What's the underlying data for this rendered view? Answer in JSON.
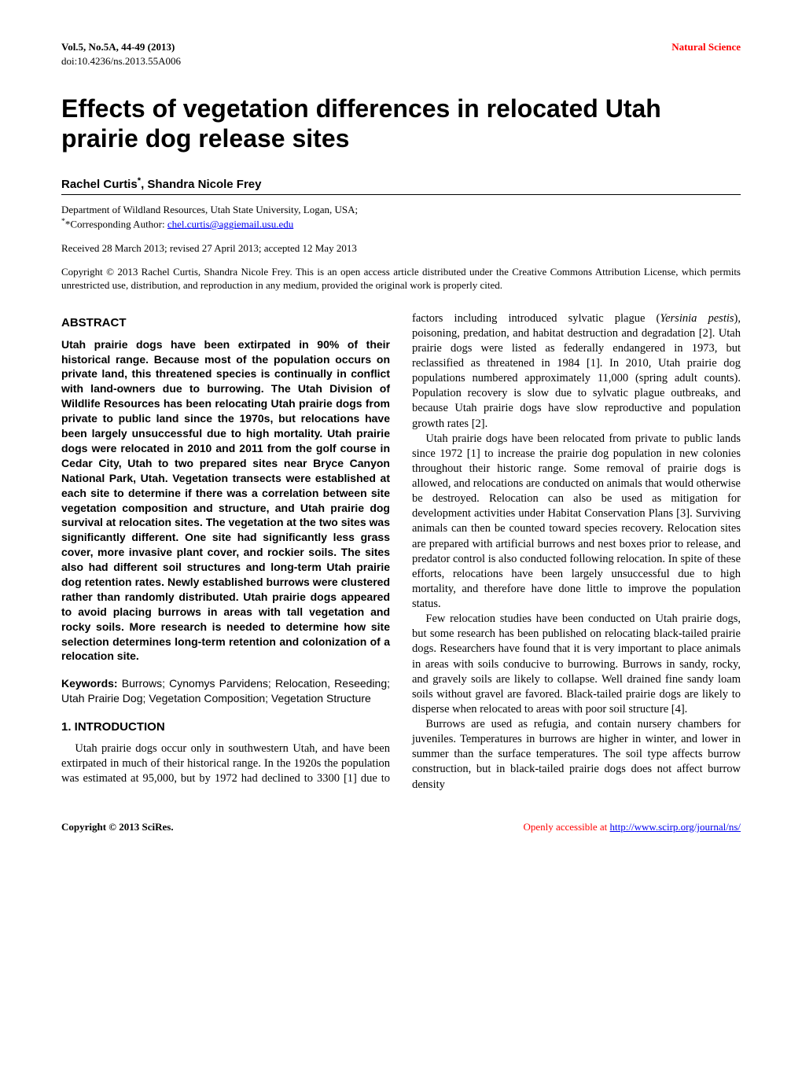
{
  "header": {
    "issue": "Vol.5, No.5A, 44-49 (2013)",
    "journal": "Natural Science",
    "doi": "doi:10.4236/ns.2013.55A006"
  },
  "title": "Effects of vegetation differences in relocated Utah prairie dog release sites",
  "authors_html": "Rachel Curtis<sup>*</sup>, Shandra Nicole Frey",
  "affiliation": {
    "dept": "Department of Wildland Resources, Utah State University, Logan, USA;",
    "corresponding_prefix": "*Corresponding Author: ",
    "email": "chel.curtis@aggiemail.usu.edu"
  },
  "received": "Received 28 March 2013; revised 27 April 2013; accepted 12 May 2013",
  "copyright": "Copyright © 2013 Rachel Curtis, Shandra Nicole Frey. This is an open access article distributed under the Creative Commons Attribution License, which permits unrestricted use, distribution, and reproduction in any medium, provided the original work is properly cited.",
  "abstract": {
    "heading": "ABSTRACT",
    "body": "Utah prairie dogs have been extirpated in 90% of their historical range. Because most of the population occurs on private land, this threatened species is continually in conflict with land-owners due to burrowing. The Utah Division of Wildlife Resources has been relocating Utah prairie dogs from private to public land since the 1970s, but relocations have been largely unsuccessful due to high mortality. Utah prairie dogs were relocated in 2010 and 2011 from the golf course in Cedar City, Utah to two prepared sites near Bryce Canyon National Park, Utah. Vegetation transects were established at each site to determine if there was a correlation between site vegetation composition and structure, and Utah prairie dog survival at relocation sites. The vegetation at the two sites was significantly different. One site had significantly less grass cover, more invasive plant cover, and rockier soils. The sites also had different soil structures and long-term Utah prairie dog retention rates. Newly established burrows were clustered rather than randomly distributed. Utah prairie dogs appeared to avoid placing burrows in areas with tall vegetation and rocky soils. More research is needed to determine how site selection determines long-term retention and colonization of a relocation site."
  },
  "keywords": {
    "label": "Keywords:",
    "text": " Burrows; Cynomys Parvidens; Relocation, Reseeding; Utah Prairie Dog; Vegetation Composition; Vegetation Structure"
  },
  "intro": {
    "heading": "1. INTRODUCTION",
    "p1": "Utah prairie dogs occur only in southwestern Utah, and have been extirpated in much of their historical range. In the 1920s the population was estimated at 95,000, but by 1972 had declined to 3300 [1] due to factors including introduced sylvatic plague (Yersinia pestis), poisoning, predation, and habitat destruction and degradation [2]. Utah prairie dogs were listed as federally endangered in 1973, but reclassified as threatened in 1984 [1]. In 2010, Utah prairie dog populations numbered approximately 11,000 (spring adult counts). Population recovery is slow due to sylvatic plague outbreaks, and because Utah prairie dogs have slow reproductive and population growth rates [2].",
    "p2": "Utah prairie dogs have been relocated from private to public lands since 1972 [1] to increase the prairie dog population in new colonies throughout their historic range. Some removal of prairie dogs is allowed, and relocations are conducted on animals that would otherwise be destroyed. Relocation can also be used as mitigation for development activities under Habitat Conservation Plans [3]. Surviving animals can then be counted toward species recovery. Relocation sites are prepared with artificial burrows and nest boxes prior to release, and predator control is also conducted following relocation. In spite of these efforts, relocations have been largely unsuccessful due to high mortality, and therefore have done little to improve the population status.",
    "p3": "Few relocation studies have been conducted on Utah prairie dogs, but some research has been published on relocating black-tailed prairie dogs. Researchers have found that it is very important to place animals in areas with soils conducive to burrowing. Burrows in sandy, rocky, and gravely soils are likely to collapse. Well drained fine sandy loam soils without gravel are favored. Black-tailed prairie dogs are likely to disperse when relocated to areas with poor soil structure [4].",
    "p4": "Burrows are used as refugia, and contain nursery chambers for juveniles. Temperatures in burrows are higher in winter, and lower in summer than the surface temperatures. The soil type affects burrow construction, but in black-tailed prairie dogs does not affect burrow density"
  },
  "footer": {
    "left": "Copyright © 2013 SciRes.",
    "right_prefix": "Openly accessible at ",
    "right_url": "http://www.scirp.org/journal/ns/"
  },
  "colors": {
    "accent": "#ff0000",
    "link": "#0000ee",
    "text": "#000000",
    "background": "#ffffff"
  }
}
